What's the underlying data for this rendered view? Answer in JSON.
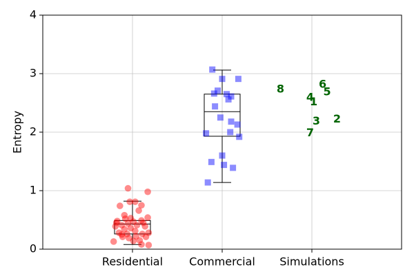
{
  "chart_data": {
    "type": "box-strip",
    "ylabel": "Entropy",
    "xlim": [
      0,
      4
    ],
    "xticks": [
      {
        "value": 1,
        "label": "Residential"
      },
      {
        "value": 2,
        "label": "Commercial"
      },
      {
        "value": 3,
        "label": "Simulations"
      }
    ],
    "ylim": [
      0,
      4
    ],
    "yticks": [
      0,
      1,
      2,
      3,
      4
    ],
    "grid": true,
    "points": [
      {
        "color": "#ff0000",
        "marker": "circle",
        "x": [
          0.95,
          1.17,
          0.97,
          1.03,
          0.86,
          1.1,
          1.07,
          0.91,
          1.17,
          0.92,
          0.83,
          1.1,
          1.01,
          0.95,
          0.88,
          1.05,
          0.81,
          1.14,
          0.98,
          0.91,
          1.03,
          0.85,
          1.18,
          0.94,
          1.11,
          0.88,
          1.04,
          0.96,
          1.08,
          0.79,
          1.01,
          1.1,
          1.18,
          0.89,
          1.15,
          0.82,
          1.12,
          0.98
        ],
        "values": [
          1.04,
          0.98,
          0.81,
          0.81,
          0.74,
          0.75,
          0.66,
          0.58,
          0.54,
          0.52,
          0.48,
          0.49,
          0.47,
          0.44,
          0.41,
          0.41,
          0.39,
          0.39,
          0.36,
          0.34,
          0.31,
          0.28,
          0.28,
          0.26,
          0.26,
          0.25,
          0.22,
          0.19,
          0.15,
          0.13,
          0.14,
          0.08,
          0.07,
          0.21,
          0.21,
          0.45,
          0.45,
          0.53
        ]
      },
      {
        "color": "#0000ff",
        "marker": "square",
        "x": [
          1.89,
          2.0,
          2.18,
          1.95,
          1.91,
          2.05,
          2.1,
          2.07,
          1.92,
          1.98,
          2.1,
          2.17,
          2.09,
          1.82,
          2.19,
          2.0,
          1.88,
          2.02,
          2.12,
          1.84
        ],
        "values": [
          3.07,
          2.91,
          2.91,
          2.71,
          2.66,
          2.65,
          2.61,
          2.56,
          2.44,
          2.25,
          2.18,
          2.13,
          2.0,
          1.98,
          1.92,
          1.6,
          1.49,
          1.44,
          1.39,
          1.14
        ]
      }
    ],
    "boxes": [
      {
        "x": 1,
        "whislo": 0.08,
        "q1": 0.26,
        "med": 0.43,
        "q3": 0.49,
        "whishi": 0.82
      },
      {
        "x": 2,
        "whislo": 1.14,
        "q1": 1.93,
        "med": 2.35,
        "q3": 2.65,
        "whishi": 3.06
      }
    ],
    "annotation_color": "#006400",
    "annotations": [
      {
        "text": "1",
        "x": 3.02,
        "y": 2.51
      },
      {
        "text": "2",
        "x": 3.28,
        "y": 2.22
      },
      {
        "text": "3",
        "x": 3.05,
        "y": 2.18
      },
      {
        "text": "4",
        "x": 2.98,
        "y": 2.59
      },
      {
        "text": "5",
        "x": 3.17,
        "y": 2.68
      },
      {
        "text": "6",
        "x": 3.12,
        "y": 2.81
      },
      {
        "text": "7",
        "x": 2.98,
        "y": 1.98
      },
      {
        "text": "8",
        "x": 2.65,
        "y": 2.73
      }
    ]
  }
}
